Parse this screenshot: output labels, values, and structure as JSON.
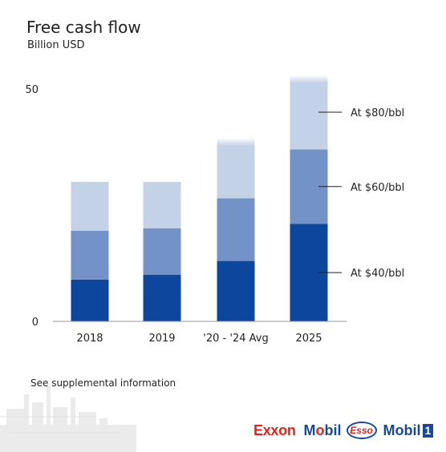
{
  "chart_data": {
    "type": "bar",
    "stacked": true,
    "title": "Free cash flow",
    "subtitle": "Billion USD",
    "categories": [
      "2018",
      "2019",
      "'20 - '24 Avg",
      "2025"
    ],
    "series": [
      {
        "name": "At $40/bbl",
        "values": [
          9,
          10,
          13,
          21
        ],
        "color": "#0c479d"
      },
      {
        "name": "At $60/bbl",
        "values": [
          10.5,
          10,
          13.5,
          16
        ],
        "color": "#7393c8"
      },
      {
        "name": "At $80/bbl",
        "values": [
          10.5,
          10,
          13,
          16
        ],
        "color": "#c4d2e8"
      }
    ],
    "y_ticks": [
      "0",
      "50"
    ],
    "ylim": [
      0,
      52
    ],
    "grid": false,
    "legend": "right, callout labels"
  },
  "footnote": "See supplemental information",
  "brands": {
    "exxon": "ExxonMobil-Exxon",
    "exxon_text": "Exxon",
    "mobil_pre": "M",
    "mobil_o": "o",
    "mobil_post": "bil",
    "esso": "Esso",
    "mobil1_text": "Mobil",
    "mobil1_num": "1"
  }
}
